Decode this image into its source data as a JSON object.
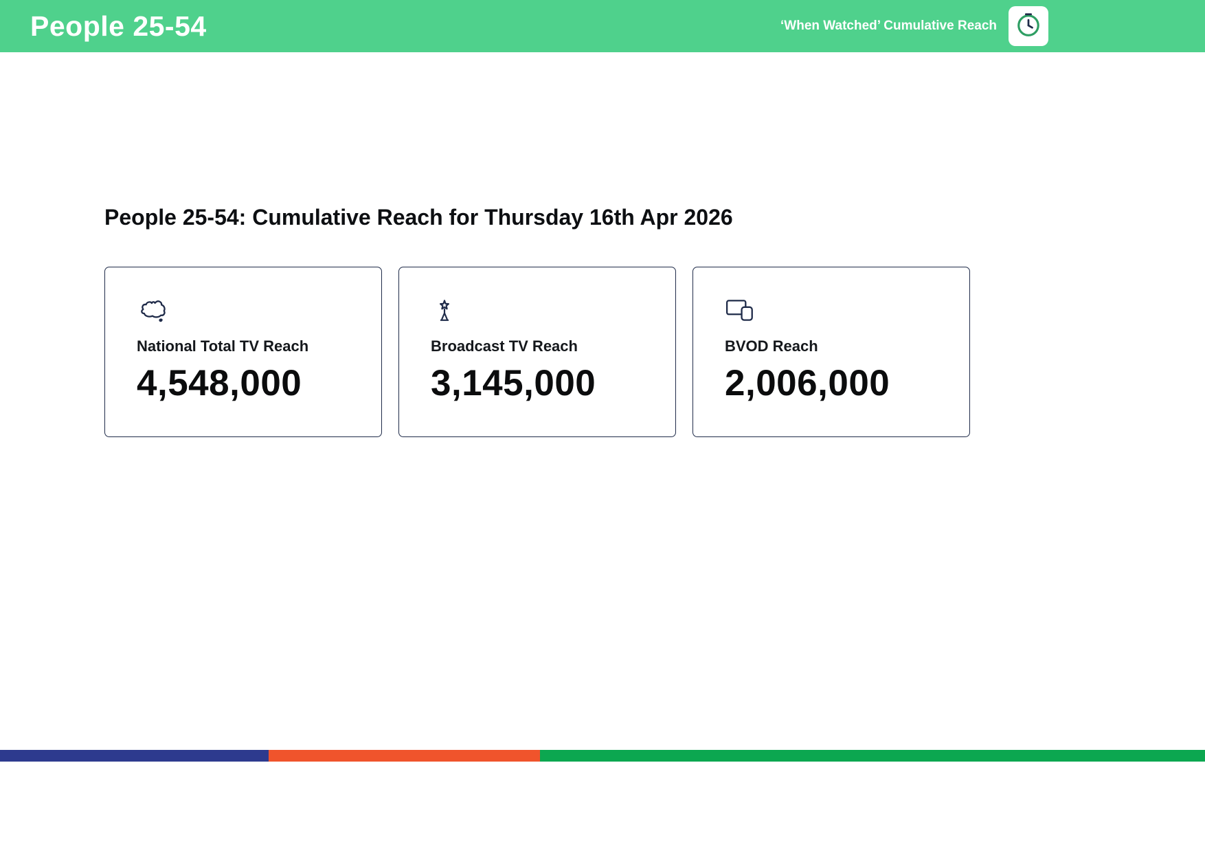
{
  "header": {
    "title": "People 25-54",
    "subtitle": "‘When Watched’ Cumulative Reach"
  },
  "main": {
    "heading": "People 25-54: Cumulative Reach for Thursday 16th Apr 2026",
    "cards": [
      {
        "icon": "australia-map",
        "label": "National Total TV Reach",
        "value": "4,548,000"
      },
      {
        "icon": "award-statue",
        "label": "Broadcast TV Reach",
        "value": "3,145,000"
      },
      {
        "icon": "tv-devices",
        "label": "BVOD Reach",
        "value": "2,006,000"
      }
    ]
  },
  "footer": {
    "segments": [
      {
        "name": "blue",
        "color": "#2d3a8e",
        "width_pct": 22.3
      },
      {
        "name": "orange",
        "color": "#f0542c",
        "width_pct": 22.5
      },
      {
        "name": "green",
        "color": "#0ca750",
        "width_pct": 55.2
      }
    ]
  },
  "colors": {
    "header_green": "#4fd18c",
    "navy": "#1f2b49",
    "text_dark": "#0d0f12"
  }
}
